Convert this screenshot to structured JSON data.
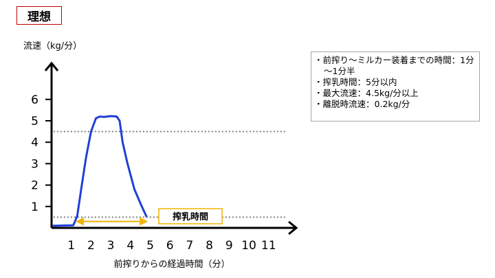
{
  "page_title": "理想",
  "info_items": [
    "前搾り～ミルカー装着までの時間：1分～1分半",
    "搾乳時間：5分以内",
    "最大流速：4.5kg/分以上",
    "離脱時流速：0.2kg/分"
  ],
  "chart_data": {
    "type": "line",
    "ylabel": "流速（kg/分）",
    "xlabel": "前搾りからの経過時間（分）",
    "xlim": [
      0,
      12.5
    ],
    "ylim": [
      0,
      7
    ],
    "x_ticks": [
      1,
      2,
      3,
      4,
      5,
      6,
      7,
      8,
      9,
      10,
      11
    ],
    "y_ticks": [
      1,
      2,
      3,
      4,
      5,
      6
    ],
    "grid": false,
    "series": [
      {
        "color": "#1f3fd6",
        "x": [
          0.1,
          1.1,
          1.3,
          1.5,
          1.75,
          2.0,
          2.25,
          2.45,
          2.65,
          3.0,
          3.3,
          3.45,
          3.6,
          3.85,
          4.2,
          4.55,
          4.8
        ],
        "y": [
          0.1,
          0.12,
          0.55,
          1.8,
          3.3,
          4.5,
          5.12,
          5.2,
          5.18,
          5.22,
          5.2,
          5.0,
          4.0,
          3.0,
          1.8,
          1.05,
          0.55
        ]
      }
    ],
    "reference_lines": [
      {
        "axis": "y",
        "value": 4.5,
        "style": "dotted",
        "color": "#7f7f7f"
      },
      {
        "axis": "y",
        "value": 0.5,
        "style": "dotted",
        "color": "#7f7f7f"
      }
    ],
    "annotation": {
      "label": "搾乳時間",
      "arrow_from": 1.3,
      "arrow_to": 4.8,
      "arrow_y": 0.3,
      "color": "#f0b400"
    }
  }
}
